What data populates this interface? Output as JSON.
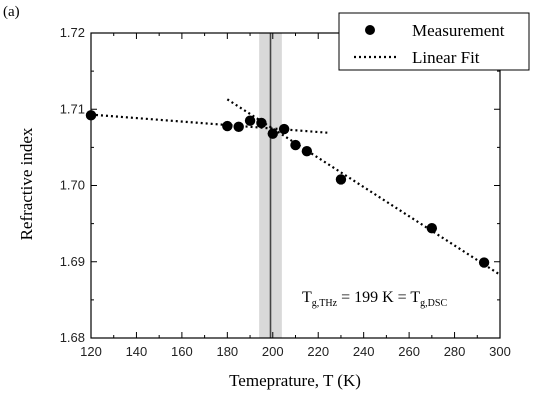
{
  "chart_data": {
    "type": "scatter",
    "panel_label": "(a)",
    "xlabel": "Temeprature, T (K)",
    "ylabel": "Refractive index",
    "xlim": [
      120,
      300
    ],
    "ylim": [
      1.68,
      1.72
    ],
    "xticks": [
      120,
      140,
      160,
      180,
      200,
      220,
      240,
      260,
      280,
      300
    ],
    "yticks": [
      1.68,
      1.69,
      1.7,
      1.71,
      1.72
    ],
    "xtick_labels": [
      "120",
      "140",
      "160",
      "180",
      "200",
      "220",
      "240",
      "260",
      "280",
      "300"
    ],
    "ytick_labels": [
      "1.68",
      "1.69",
      "1.70",
      "1.71",
      "1.72"
    ],
    "grid": false,
    "legend_position": "top-right",
    "series": [
      {
        "name": "Measurement",
        "kind": "scatter",
        "color": "#000000",
        "x": [
          120,
          180,
          185,
          190,
          195,
          200,
          205,
          210,
          215,
          230,
          270,
          293
        ],
        "y": [
          1.7092,
          1.7078,
          1.7077,
          1.7085,
          1.7082,
          1.7068,
          1.7074,
          1.7053,
          1.7045,
          1.7008,
          1.6944,
          1.6899
        ]
      },
      {
        "name": "Linear Fit",
        "kind": "dotted-line",
        "color": "#000000",
        "segments": [
          {
            "x": [
              120,
              225
            ],
            "y": [
              1.7093,
              1.7069
            ]
          },
          {
            "x": [
              180,
              300
            ],
            "y": [
              1.7113,
              1.6883
            ]
          }
        ]
      }
    ],
    "glass_transition": {
      "x": 199,
      "band": [
        194,
        204
      ],
      "band_color": "#d9d9d9",
      "line_color": "#444444"
    },
    "annotation": {
      "prefix": "T",
      "sub1": "g,THz",
      "middle": " = 199 K = T",
      "sub2": "g,DSC"
    }
  }
}
